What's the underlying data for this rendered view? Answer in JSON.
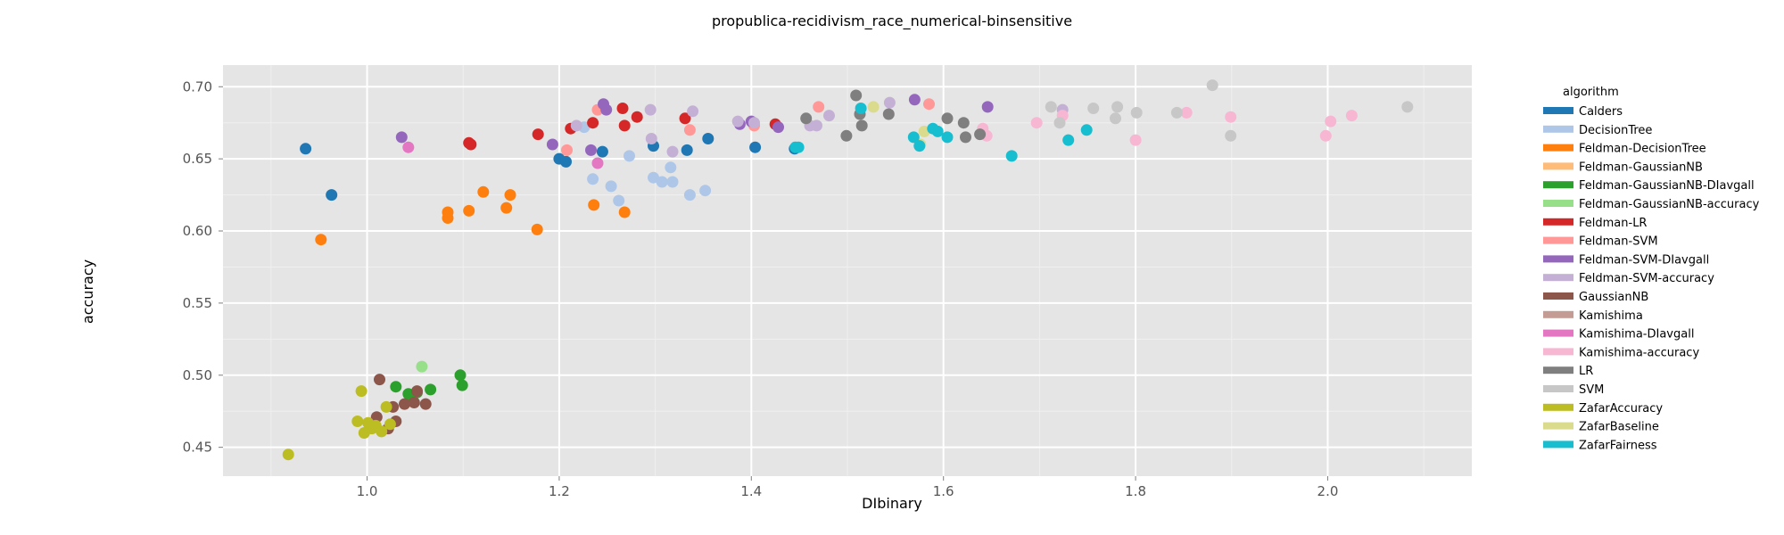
{
  "chart_data": {
    "type": "scatter",
    "title": "propublica-recidivism_race_numerical-binsensitive",
    "xlabel": "DIbinary",
    "ylabel": "accuracy",
    "xlim": [
      0.85,
      2.15
    ],
    "ylim": [
      0.43,
      0.715
    ],
    "xticks": [
      1.0,
      1.2,
      1.4,
      1.6,
      1.8,
      2.0
    ],
    "xtick_labels": [
      "1.0",
      "1.2",
      "1.4",
      "1.6",
      "1.8",
      "2.0"
    ],
    "yticks": [
      0.45,
      0.5,
      0.55,
      0.6,
      0.65,
      0.7
    ],
    "ytick_labels": [
      "0.45",
      "0.50",
      "0.55",
      "0.60",
      "0.65",
      "0.70"
    ],
    "grid": true,
    "background": "#e5e5e5",
    "legend_title": "algorithm",
    "legend_position": "right",
    "series": [
      {
        "name": "Calders",
        "color": "#1f77b4",
        "x": [
          0.936,
          0.963,
          1.2,
          1.207,
          1.245,
          1.298,
          1.333,
          1.355,
          1.404,
          1.445
        ],
        "y": [
          0.657,
          0.625,
          0.65,
          0.648,
          0.655,
          0.659,
          0.656,
          0.664,
          0.658,
          0.657
        ]
      },
      {
        "name": "DecisionTree",
        "color": "#aec7e8",
        "x": [
          1.235,
          1.254,
          1.262,
          1.273,
          1.298,
          1.307,
          1.316,
          1.318,
          1.336,
          1.352,
          1.226
        ],
        "y": [
          0.636,
          0.631,
          0.621,
          0.652,
          0.637,
          0.634,
          0.644,
          0.634,
          0.625,
          0.628,
          0.672
        ]
      },
      {
        "name": "Feldman-DecisionTree",
        "color": "#ff7f0e",
        "x": [
          0.952,
          1.084,
          1.084,
          1.106,
          1.121,
          1.145,
          1.149,
          1.177,
          1.236,
          1.268
        ],
        "y": [
          0.594,
          0.613,
          0.609,
          0.614,
          0.627,
          0.616,
          0.625,
          0.601,
          0.618,
          0.613
        ]
      },
      {
        "name": "Feldman-GaussianNB",
        "color": "#ffbb78",
        "x": [],
        "y": []
      },
      {
        "name": "Feldman-GaussianNB-DIavgall",
        "color": "#2ca02c",
        "x": [
          1.03,
          1.043,
          1.047,
          1.052,
          1.066,
          1.097,
          1.099
        ],
        "y": [
          0.492,
          0.487,
          0.483,
          0.488,
          0.49,
          0.5,
          0.493
        ]
      },
      {
        "name": "Feldman-GaussianNB-accuracy",
        "color": "#98df8a",
        "x": [
          1.057
        ],
        "y": [
          0.506
        ]
      },
      {
        "name": "Feldman-LR",
        "color": "#d62728",
        "x": [
          1.106,
          1.108,
          1.178,
          1.212,
          1.235,
          1.266,
          1.268,
          1.281,
          1.331,
          1.425
        ],
        "y": [
          0.661,
          0.66,
          0.667,
          0.671,
          0.675,
          0.685,
          0.673,
          0.679,
          0.678,
          0.674
        ]
      },
      {
        "name": "Feldman-SVM",
        "color": "#ff9896",
        "x": [
          1.208,
          1.24,
          1.336,
          1.403,
          1.47,
          1.585
        ],
        "y": [
          0.656,
          0.684,
          0.67,
          0.673,
          0.686,
          0.688
        ]
      },
      {
        "name": "Feldman-SVM-DIavgall",
        "color": "#9467bd",
        "x": [
          1.036,
          1.193,
          1.233,
          1.246,
          1.249,
          1.388,
          1.4,
          1.428,
          1.57,
          1.646
        ],
        "y": [
          0.665,
          0.66,
          0.656,
          0.688,
          0.684,
          0.674,
          0.676,
          0.672,
          0.691,
          0.686
        ]
      },
      {
        "name": "Feldman-SVM-accuracy",
        "color": "#c5b0d5",
        "x": [
          1.218,
          1.295,
          1.296,
          1.318,
          1.339,
          1.386,
          1.403,
          1.461,
          1.468,
          1.481,
          1.544,
          1.724
        ],
        "y": [
          0.673,
          0.684,
          0.664,
          0.655,
          0.683,
          0.676,
          0.675,
          0.673,
          0.673,
          0.68,
          0.689,
          0.684
        ]
      },
      {
        "name": "GaussianNB",
        "color": "#8c564b",
        "x": [
          1.01,
          1.013,
          1.022,
          1.027,
          1.03,
          1.039,
          1.049,
          1.052,
          1.061
        ],
        "y": [
          0.471,
          0.497,
          0.463,
          0.478,
          0.468,
          0.48,
          0.481,
          0.489,
          0.48
        ]
      },
      {
        "name": "Kamishima",
        "color": "#c49c94",
        "x": [],
        "y": []
      },
      {
        "name": "Kamishima-DIavgall",
        "color": "#e377c2",
        "x": [
          1.043,
          1.24
        ],
        "y": [
          0.658,
          0.647
        ]
      },
      {
        "name": "Kamishima-accuracy",
        "color": "#f7b6d2",
        "x": [
          1.641,
          1.645,
          1.697,
          1.724,
          1.8,
          1.853,
          1.899,
          1.998,
          2.003,
          2.025
        ],
        "y": [
          0.671,
          0.666,
          0.675,
          0.68,
          0.663,
          0.682,
          0.679,
          0.666,
          0.676,
          0.68
        ]
      },
      {
        "name": "LR",
        "color": "#7f7f7f",
        "x": [
          1.457,
          1.499,
          1.509,
          1.513,
          1.515,
          1.543,
          1.604,
          1.621,
          1.623,
          1.638
        ],
        "y": [
          0.678,
          0.666,
          0.694,
          0.681,
          0.673,
          0.681,
          0.678,
          0.675,
          0.665,
          0.667
        ]
      },
      {
        "name": "SVM",
        "color": "#c7c7c7",
        "x": [
          1.712,
          1.721,
          1.756,
          1.779,
          1.781,
          1.801,
          1.843,
          1.88,
          1.899,
          2.083
        ],
        "y": [
          0.686,
          0.675,
          0.685,
          0.678,
          0.686,
          0.682,
          0.682,
          0.701,
          0.666,
          0.686
        ]
      },
      {
        "name": "ZafarAccuracy",
        "color": "#bcbd22",
        "x": [
          0.918,
          0.99,
          0.994,
          0.997,
          1.001,
          1.005,
          1.009,
          1.015,
          1.02,
          1.024
        ],
        "y": [
          0.445,
          0.468,
          0.489,
          0.46,
          0.467,
          0.463,
          0.465,
          0.461,
          0.478,
          0.466
        ]
      },
      {
        "name": "ZafarBaseline",
        "color": "#dbdb8d",
        "x": [
          1.527,
          1.576,
          1.58
        ],
        "y": [
          0.686,
          0.66,
          0.669
        ]
      },
      {
        "name": "ZafarFairness",
        "color": "#17becf",
        "x": [
          1.446,
          1.449,
          1.514,
          1.569,
          1.575,
          1.589,
          1.594,
          1.604,
          1.671,
          1.73,
          1.749
        ],
        "y": [
          0.658,
          0.658,
          0.685,
          0.665,
          0.659,
          0.671,
          0.669,
          0.665,
          0.652,
          0.663,
          0.67
        ]
      }
    ]
  }
}
